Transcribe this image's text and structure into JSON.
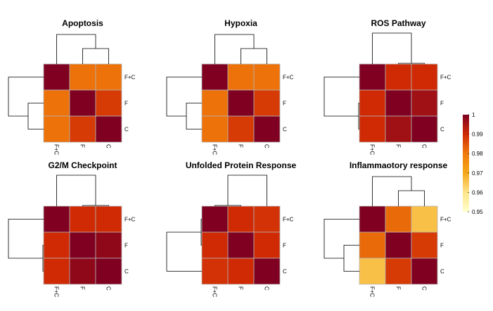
{
  "chart_data": {
    "type": "heatmap",
    "row_labels": [
      "F+C",
      "F",
      "C"
    ],
    "col_labels": [
      "F+C",
      "F",
      "C"
    ],
    "colorscale": {
      "min": 0.95,
      "max": 1,
      "ticks": [
        "1",
        "0.99",
        "0.98",
        "0.97",
        "0.96",
        "0.95"
      ],
      "stops": [
        {
          "value": 0.95,
          "color": "#ffffcc"
        },
        {
          "value": 0.96,
          "color": "#fee58a"
        },
        {
          "value": 0.97,
          "color": "#f5a71a"
        },
        {
          "value": 0.98,
          "color": "#f07a0a"
        },
        {
          "value": 0.99,
          "color": "#cf2a04"
        },
        {
          "value": 1.0,
          "color": "#7f0020"
        }
      ]
    },
    "panels": [
      {
        "title": "Apoptosis",
        "matrix": [
          [
            1,
            0.981,
            0.981
          ],
          [
            0.981,
            1,
            0.988
          ],
          [
            0.981,
            0.988,
            1
          ]
        ],
        "col_tree": "split-right",
        "row_tree": "split-bottom"
      },
      {
        "title": "Hypoxia",
        "matrix": [
          [
            1,
            0.981,
            0.981
          ],
          [
            0.981,
            1,
            0.988
          ],
          [
            0.981,
            0.988,
            1
          ]
        ],
        "col_tree": "split-right",
        "row_tree": "split-bottom"
      },
      {
        "title": "ROS Pathway",
        "matrix": [
          [
            1,
            0.99,
            0.99
          ],
          [
            0.99,
            1,
            0.996
          ],
          [
            0.99,
            0.996,
            1
          ]
        ],
        "col_tree": "flat-right",
        "row_tree": "flat-bottom"
      },
      {
        "title": "G2/M Checkpoint",
        "matrix": [
          [
            1,
            0.99,
            0.99
          ],
          [
            0.99,
            1,
            0.998
          ],
          [
            0.99,
            0.998,
            1
          ]
        ],
        "col_tree": "flat-right",
        "row_tree": "flat-bottom"
      },
      {
        "title": "Unfolded Protein Response",
        "matrix": [
          [
            1,
            0.99,
            0.989
          ],
          [
            0.99,
            1,
            0.99
          ],
          [
            0.989,
            0.99,
            1
          ]
        ],
        "col_tree": "flat-first",
        "row_tree": "flat-top"
      },
      {
        "title": "Inflammaotory response",
        "matrix": [
          [
            1,
            0.982,
            0.966
          ],
          [
            0.982,
            1,
            0.988
          ],
          [
            0.966,
            0.988,
            1
          ]
        ],
        "col_tree": "split-right",
        "row_tree": "split-bottom"
      }
    ]
  }
}
